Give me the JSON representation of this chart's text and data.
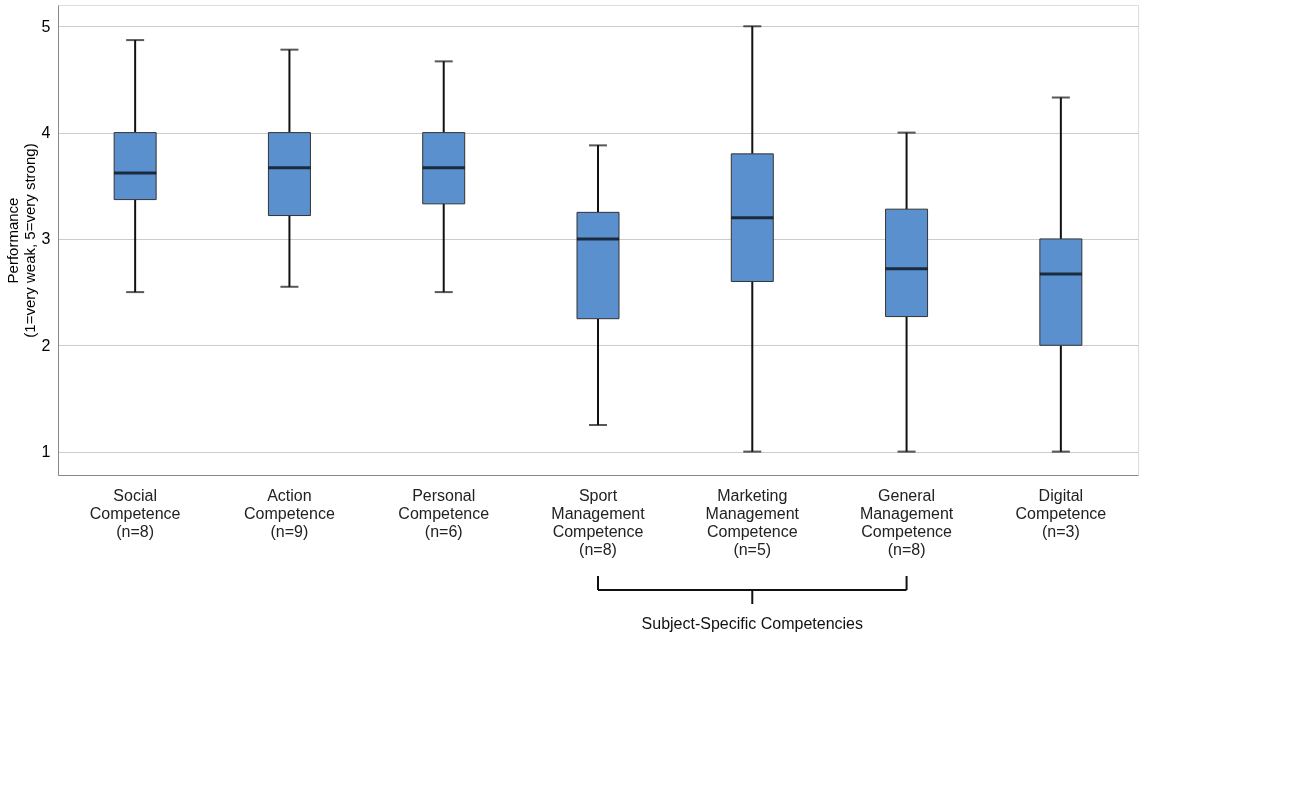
{
  "chart_data": {
    "type": "box",
    "categories": [
      "Social\nCompetence\n(n=8)",
      "Action\nCompetence\n(n=9)",
      "Personal\nCompetence\n(n=6)",
      "Sport\nManagement\nCompetence\n(n=8)",
      "Marketing\nManagement\nCompetence\n(n=5)",
      "General\nManagement\nCompetence\n(n=8)",
      "Digital\nCompetence\n(n=3)"
    ],
    "boxes": [
      {
        "low": 2.5,
        "q1": 3.37,
        "median": 3.62,
        "q3": 4.0,
        "high": 4.87
      },
      {
        "low": 2.55,
        "q1": 3.22,
        "median": 3.67,
        "q3": 4.0,
        "high": 4.78
      },
      {
        "low": 2.5,
        "q1": 3.33,
        "median": 3.67,
        "q3": 4.0,
        "high": 4.67
      },
      {
        "low": 1.25,
        "q1": 2.25,
        "median": 3.0,
        "q3": 3.25,
        "high": 3.88
      },
      {
        "low": 1.0,
        "q1": 2.6,
        "median": 3.2,
        "q3": 3.8,
        "high": 5.0
      },
      {
        "low": 1.0,
        "q1": 2.27,
        "median": 2.72,
        "q3": 3.28,
        "high": 4.0
      },
      {
        "low": 1.0,
        "q1": 2.0,
        "median": 2.67,
        "q3": 3.0,
        "high": 4.33
      }
    ],
    "color": "#5b90cf",
    "ylabel": "Performance\n(1=very weak, 5=very strong)",
    "ylim": [
      0.78,
      5.2
    ],
    "yticks": [
      1,
      2,
      3,
      4,
      5
    ],
    "grid": "y",
    "annotations": [
      "Subject-Specific Competencies"
    ]
  }
}
